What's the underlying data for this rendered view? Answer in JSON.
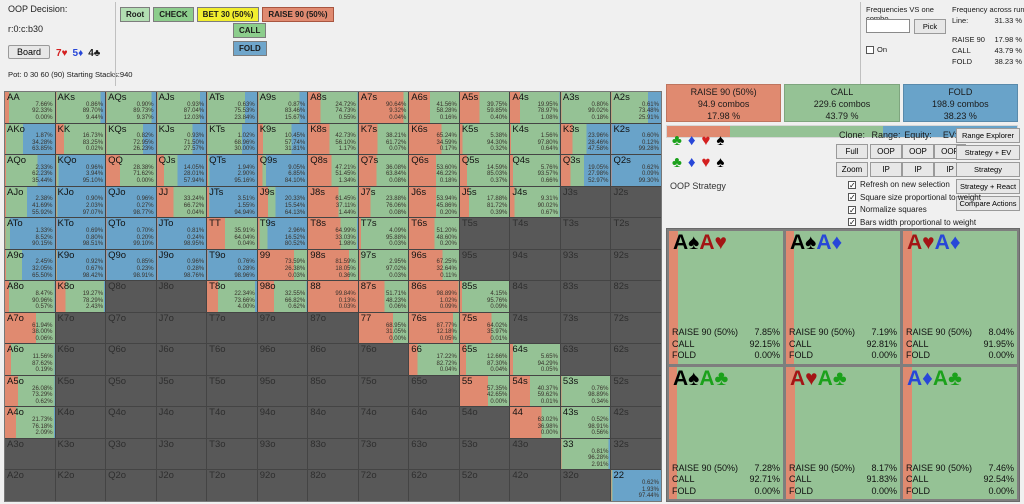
{
  "colors": {
    "raise": "#e08a70",
    "call": "#95c295",
    "fold": "#69a3c9",
    "inactive": "#585858"
  },
  "suit_glyphs": {
    "s": "♠",
    "h": "♥",
    "d": "♦",
    "c": "♣"
  },
  "suit_colors": {
    "s": "#000000",
    "h": "#a31515",
    "d": "#2847d8",
    "c": "#1ba11b"
  },
  "selector_suit_order": [
    "c",
    "d",
    "h",
    "s"
  ],
  "selector_suit_colors": {
    "c": "#1ba11b",
    "d": "#2847d8",
    "h": "#d42020",
    "s": "#000000"
  },
  "decision": {
    "title": "OOP Decision:",
    "node": "r:0:c:b30",
    "board_label": "Board",
    "board": [
      {
        "rank": "7",
        "suit": "h",
        "color": "#d42020"
      },
      {
        "rank": "5",
        "suit": "d",
        "color": "#2847d8"
      },
      {
        "rank": "4",
        "suit": "c",
        "color": "#1a1a1a"
      }
    ],
    "pot_line": "Pot: 0 30 60 (90) Starting Stacks:940"
  },
  "tree": {
    "main": [
      {
        "label": "Root",
        "type": "root"
      },
      {
        "label": "CHECK",
        "type": "check"
      },
      {
        "label": "BET 30 (50%)",
        "type": "bet"
      },
      {
        "label": "RAISE 90 (50%)",
        "type": "raise"
      }
    ],
    "sub": [
      {
        "label": "CALL",
        "type": "call"
      },
      {
        "label": "FOLD",
        "type": "fold"
      }
    ]
  },
  "freq_vs_combo": {
    "title": "Frequencies VS one combo",
    "input_value": "",
    "pick_label": "Pick",
    "on_label": "On",
    "on_checked": false
  },
  "freq_runouts": {
    "title": "Frequency across runouts:",
    "rows": [
      {
        "label": "Line:",
        "value": "31.33 %",
        "gap": false
      },
      {
        "label": "RAISE 90",
        "value": "17.98 %",
        "gap": true
      },
      {
        "label": "CALL",
        "value": "43.79 %",
        "gap": false
      },
      {
        "label": "FOLD",
        "value": "38.23 %",
        "gap": false
      }
    ]
  },
  "summary": {
    "actions": [
      {
        "label": "RAISE 90 (50%)",
        "combos": "94.9 combos",
        "pct": "17.98 %",
        "pct_val": 17.98,
        "color": "raise"
      },
      {
        "label": "CALL",
        "combos": "229.6 combos",
        "pct": "43.79 %",
        "pct_val": 43.79,
        "color": "call"
      },
      {
        "label": "FOLD",
        "combos": "198.9 combos",
        "pct": "38.23 %",
        "pct_val": 38.23,
        "color": "fold"
      }
    ]
  },
  "controls": {
    "strategy_label": "OOP Strategy",
    "col_labels": [
      "Clone:",
      "Range:",
      "Equity:",
      "EV:"
    ],
    "button_rows": [
      [
        "Full",
        "OOP",
        "OOP",
        "OOP"
      ],
      [
        "Zoom",
        "IP",
        "IP",
        "IP"
      ]
    ],
    "right_buttons": [
      "Range Explorer",
      "Strategy + EV",
      "Strategy",
      "Strategy + React",
      "Compare Actions"
    ],
    "checkboxes": [
      {
        "label": "Refresh on new selection",
        "checked": true
      },
      {
        "label": "Square size proportional to weight",
        "checked": true
      },
      {
        "label": "Normalize squares",
        "checked": true
      },
      {
        "label": "Bars width proportional to weight",
        "checked": true
      }
    ]
  },
  "grid": {
    "rows": [
      [
        [
          "AA",
          7.66,
          92.33,
          0.0
        ],
        [
          "AKs",
          0.86,
          89.7,
          9.44
        ],
        [
          "AQs",
          0.9,
          89.73,
          9.37
        ],
        [
          "AJs",
          0.93,
          87.04,
          12.03
        ],
        [
          "ATs",
          0.63,
          75.53,
          23.84
        ],
        [
          "A9s",
          0.87,
          83.46,
          15.67
        ],
        [
          "A8s",
          24.72,
          74.73,
          0.55
        ],
        [
          "A7s",
          90.64,
          9.32,
          0.04
        ],
        [
          "A6s",
          41.56,
          58.28,
          0.16
        ],
        [
          "A5s",
          39.75,
          59.85,
          0.4
        ],
        [
          "A4s",
          19.95,
          78.97,
          1.08
        ],
        [
          "A3s",
          0.8,
          99.02,
          0.18
        ],
        [
          "A2s",
          0.61,
          73.48,
          25.91
        ]
      ],
      [
        [
          "AKo",
          1.87,
          34.28,
          63.85
        ],
        [
          "KK",
          16.73,
          83.25,
          0.02
        ],
        [
          "KQs",
          0.82,
          72.95,
          26.23
        ],
        [
          "KJs",
          0.93,
          71.5,
          27.57
        ],
        [
          "KTs",
          1.02,
          68.96,
          30.0
        ],
        [
          "K9s",
          10.45,
          57.74,
          31.81
        ],
        [
          "K8s",
          42.73,
          56.1,
          1.17
        ],
        [
          "K7s",
          38.21,
          61.72,
          0.07
        ],
        [
          "K6s",
          65.24,
          34.59,
          0.17
        ],
        [
          "K5s",
          5.38,
          94.3,
          0.32
        ],
        [
          "K4s",
          1.56,
          97.8,
          0.64
        ],
        [
          "K3s",
          23.96,
          28.46,
          47.58
        ],
        [
          "K2s",
          0.6,
          0.12,
          99.28
        ]
      ],
      [
        [
          "AQo",
          2.33,
          62.23,
          35.44
        ],
        [
          "KQo",
          0.96,
          3.94,
          95.1
        ],
        [
          "QQ",
          28.38,
          71.62,
          0.0
        ],
        [
          "QJs",
          14.05,
          28.01,
          57.94
        ],
        [
          "QTs",
          1.94,
          2.9,
          95.16
        ],
        [
          "Q9s",
          9.05,
          6.85,
          84.1
        ],
        [
          "Q8s",
          47.21,
          51.45,
          1.34
        ],
        [
          "Q7s",
          36.08,
          63.84,
          0.08
        ],
        [
          "Q6s",
          53.6,
          46.22,
          0.18
        ],
        [
          "Q5s",
          14.59,
          85.03,
          0.37
        ],
        [
          "Q4s",
          5.76,
          93.57,
          0.66
        ],
        [
          "Q3s",
          19.05,
          27.98,
          52.97
        ],
        [
          "Q2s",
          0.62,
          0.09,
          99.3
        ]
      ],
      [
        [
          "AJo",
          2.38,
          41.69,
          55.92
        ],
        [
          "KJo",
          0.9,
          2.03,
          97.07
        ],
        [
          "QJo",
          0.96,
          0.27,
          98.77
        ],
        [
          "JJ",
          33.24,
          66.72,
          0.04
        ],
        [
          "JTs",
          3.51,
          1.55,
          94.94
        ],
        [
          "J9s",
          20.33,
          15.54,
          64.13
        ],
        [
          "J8s",
          61.45,
          37.11,
          1.44
        ],
        [
          "J7s",
          23.88,
          76.06,
          0.08
        ],
        [
          "J6s",
          53.94,
          45.86,
          0.2
        ],
        [
          "J5s",
          17.88,
          81.72,
          0.39
        ],
        [
          "J4s",
          9.31,
          90.02,
          0.67
        ],
        [
          "J3s"
        ],
        [
          "J2s"
        ]
      ],
      [
        [
          "ATo",
          1.33,
          8.52,
          90.15
        ],
        [
          "KTo",
          0.69,
          0.8,
          98.51
        ],
        [
          "QTo",
          0.7,
          0.2,
          99.1
        ],
        [
          "JTo",
          0.81,
          0.24,
          98.95
        ],
        [
          "TT",
          35.91,
          64.04,
          0.04
        ],
        [
          "T9s",
          2.96,
          16.52,
          80.52
        ],
        [
          "T8s",
          64.99,
          33.03,
          1.98
        ],
        [
          "T7s",
          4.09,
          95.88,
          0.03
        ],
        [
          "T6s",
          51.2,
          48.6,
          0.2
        ],
        [
          "T5s"
        ],
        [
          "T4s"
        ],
        [
          "T3s"
        ],
        [
          "T2s"
        ]
      ],
      [
        [
          "A9o",
          2.45,
          32.05,
          65.5
        ],
        [
          "K9o",
          0.92,
          0.67,
          98.42
        ],
        [
          "Q9o",
          0.85,
          0.23,
          98.91
        ],
        [
          "J9o",
          0.96,
          0.28,
          98.76
        ],
        [
          "T9o",
          0.76,
          0.28,
          98.96
        ],
        [
          "99",
          73.59,
          26.38,
          0.03
        ],
        [
          "98s",
          81.59,
          18.05,
          0.36
        ],
        [
          "97s",
          2.95,
          97.02,
          0.03
        ],
        [
          "96s",
          67.25,
          32.64,
          0.11
        ],
        [
          "95s"
        ],
        [
          "94s"
        ],
        [
          "93s"
        ],
        [
          "92s"
        ]
      ],
      [
        [
          "A8o",
          8.47,
          90.96,
          0.57
        ],
        [
          "K8o",
          19.27,
          78.29,
          2.43
        ],
        [
          "Q8o"
        ],
        [
          "J8o"
        ],
        [
          "T8o",
          22.34,
          73.66,
          4.0
        ],
        [
          "98o",
          32.55,
          66.82,
          0.62
        ],
        [
          "88",
          99.84,
          0.13,
          0.03
        ],
        [
          "87s",
          51.71,
          48.23,
          0.06
        ],
        [
          "86s",
          98.89,
          1.02,
          0.09
        ],
        [
          "85s",
          4.15,
          95.76,
          0.09
        ],
        [
          "84s"
        ],
        [
          "83s"
        ],
        [
          "82s"
        ]
      ],
      [
        [
          "A7o",
          61.94,
          38.0,
          0.06
        ],
        [
          "K7o"
        ],
        [
          "Q7o"
        ],
        [
          "J7o"
        ],
        [
          "T7o"
        ],
        [
          "97o"
        ],
        [
          "87o"
        ],
        [
          "77",
          68.95,
          31.05,
          0.0
        ],
        [
          "76s",
          87.77,
          12.18,
          0.05
        ],
        [
          "75s",
          64.02,
          35.97,
          0.01
        ],
        [
          "74s"
        ],
        [
          "73s"
        ],
        [
          "72s"
        ]
      ],
      [
        [
          "A6o",
          11.56,
          87.62,
          0.19
        ],
        [
          "K6o"
        ],
        [
          "Q6o"
        ],
        [
          "J6o"
        ],
        [
          "T6o"
        ],
        [
          "96o"
        ],
        [
          "86o"
        ],
        [
          "76o"
        ],
        [
          "66",
          17.22,
          82.72,
          0.04
        ],
        [
          "65s",
          12.66,
          87.3,
          0.04
        ],
        [
          "64s",
          5.65,
          94.29,
          0.05
        ],
        [
          "63s"
        ],
        [
          "62s"
        ]
      ],
      [
        [
          "A5o",
          26.08,
          73.29,
          0.62
        ],
        [
          "K5o"
        ],
        [
          "Q5o"
        ],
        [
          "J5o"
        ],
        [
          "T5o"
        ],
        [
          "95o"
        ],
        [
          "85o"
        ],
        [
          "75o"
        ],
        [
          "65o"
        ],
        [
          "55",
          57.35,
          42.65,
          0.0
        ],
        [
          "54s",
          40.37,
          59.62,
          0.01
        ],
        [
          "53s",
          0.76,
          98.89,
          0.34
        ],
        [
          "52s"
        ]
      ],
      [
        [
          "A4o",
          21.73,
          76.18,
          2.09
        ],
        [
          "K4o"
        ],
        [
          "Q4o"
        ],
        [
          "J4o"
        ],
        [
          "T4o"
        ],
        [
          "94o"
        ],
        [
          "84o"
        ],
        [
          "74o"
        ],
        [
          "64o"
        ],
        [
          "54o"
        ],
        [
          "44",
          63.02,
          36.98,
          0.0
        ],
        [
          "43s",
          0.52,
          98.91,
          0.56
        ],
        [
          "42s"
        ]
      ],
      [
        [
          "A3o"
        ],
        [
          "K3o"
        ],
        [
          "Q3o"
        ],
        [
          "J3o"
        ],
        [
          "T3o"
        ],
        [
          "93o"
        ],
        [
          "83o"
        ],
        [
          "73o"
        ],
        [
          "63o"
        ],
        [
          "53o"
        ],
        [
          "43o"
        ],
        [
          "33",
          0.81,
          96.28,
          2.91
        ],
        [
          "32s"
        ]
      ],
      [
        [
          "A2o"
        ],
        [
          "K2o"
        ],
        [
          "Q2o"
        ],
        [
          "J2o"
        ],
        [
          "T2o"
        ],
        [
          "92o"
        ],
        [
          "82o"
        ],
        [
          "72o"
        ],
        [
          "62o"
        ],
        [
          "52o"
        ],
        [
          "42o"
        ],
        [
          "32o"
        ],
        [
          "22",
          0.62,
          1.93,
          97.44
        ]
      ]
    ]
  },
  "combos": {
    "raise_label": "RAISE 90 (50%)",
    "call_label": "CALL",
    "fold_label": "FOLD",
    "items": [
      {
        "cards": [
          [
            "A",
            "s"
          ],
          [
            "A",
            "h"
          ]
        ],
        "raise": 7.85,
        "call": 92.15,
        "fold": 0.0
      },
      {
        "cards": [
          [
            "A",
            "s"
          ],
          [
            "A",
            "d"
          ]
        ],
        "raise": 7.19,
        "call": 92.81,
        "fold": 0.0
      },
      {
        "cards": [
          [
            "A",
            "h"
          ],
          [
            "A",
            "d"
          ]
        ],
        "raise": 8.04,
        "call": 91.95,
        "fold": 0.0
      },
      {
        "cards": [
          [
            "A",
            "s"
          ],
          [
            "A",
            "c"
          ]
        ],
        "raise": 7.28,
        "call": 92.71,
        "fold": 0.0
      },
      {
        "cards": [
          [
            "A",
            "h"
          ],
          [
            "A",
            "c"
          ]
        ],
        "raise": 8.17,
        "call": 91.83,
        "fold": 0.0
      },
      {
        "cards": [
          [
            "A",
            "d"
          ],
          [
            "A",
            "c"
          ]
        ],
        "raise": 7.46,
        "call": 92.54,
        "fold": 0.0
      }
    ]
  }
}
